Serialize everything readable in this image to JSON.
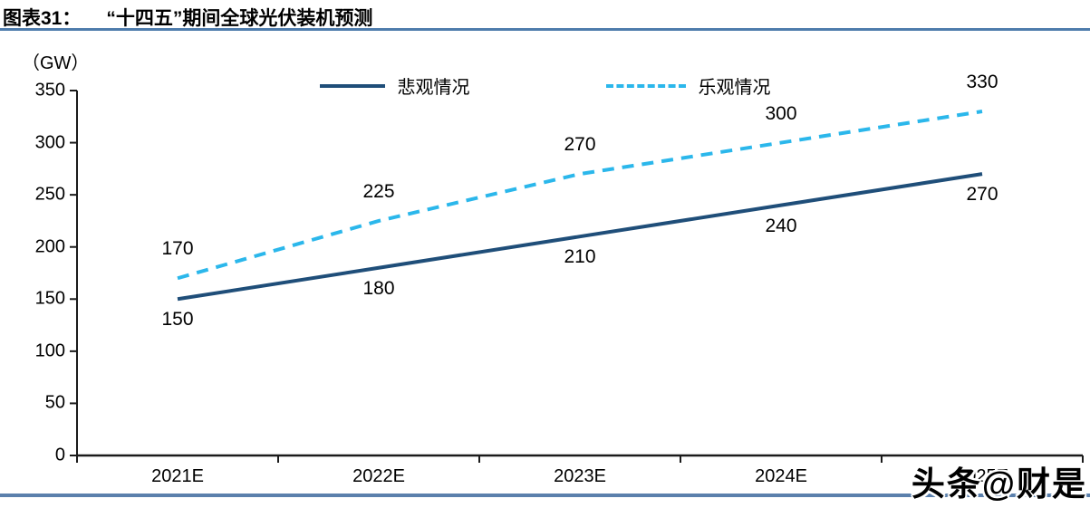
{
  "header": {
    "title_prefix": "图表31：",
    "title": "“十四五”期间全球光伏装机预测"
  },
  "watermark": "头条@财是",
  "colors": {
    "rule_blue": "#4e7cac",
    "axis_black": "#1a1a1a",
    "pessimistic_line": "#1f4e79",
    "optimistic_line": "#2bb7eb"
  },
  "chart_data": {
    "type": "line",
    "title": "“十四五”期间全球光伏装机预测",
    "unit_label": "（GW）",
    "xlabel": "",
    "ylabel": "GW",
    "categories": [
      "2021E",
      "2022E",
      "2023E",
      "2024E",
      "2025E"
    ],
    "series": [
      {
        "key": "pessimistic",
        "name": "悲观情况",
        "style": "solid",
        "color": "#1f4e79",
        "label_position": "below",
        "values": [
          150,
          180,
          210,
          240,
          270
        ]
      },
      {
        "key": "optimistic",
        "name": "乐观情况",
        "style": "dashed",
        "color": "#2bb7eb",
        "label_position": "above",
        "values": [
          170,
          225,
          270,
          300,
          330
        ]
      }
    ],
    "ylim": [
      0,
      350
    ],
    "ytick_step": 50,
    "grid": false,
    "legend_position": "top-center"
  }
}
